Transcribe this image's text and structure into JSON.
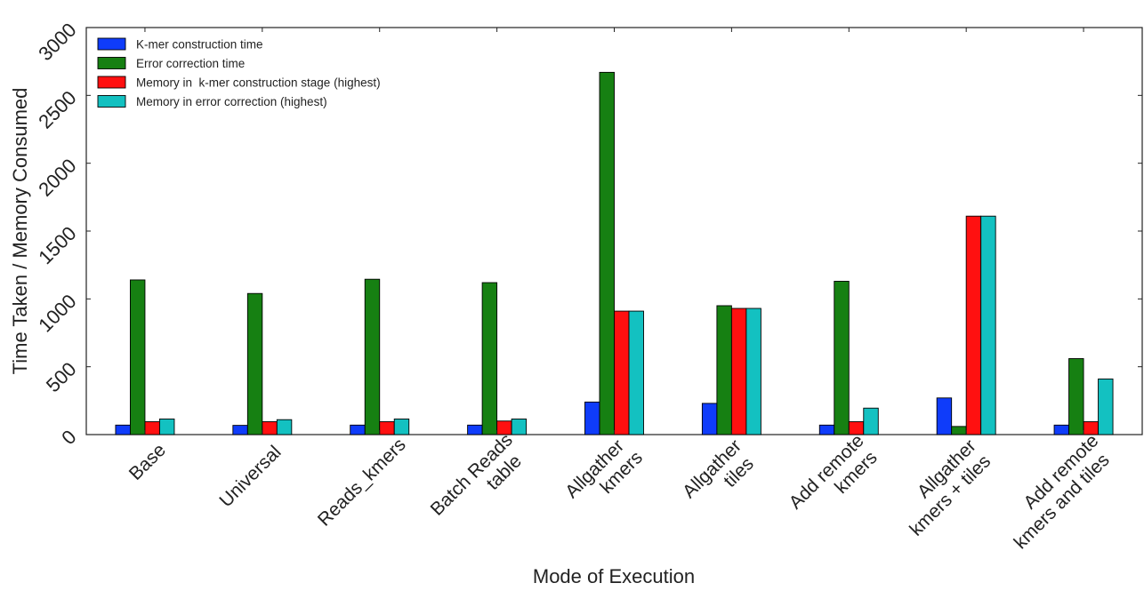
{
  "chart_data": {
    "type": "bar",
    "title": "",
    "xlabel": "Mode of Execution",
    "ylabel": "Time Taken / Memory Consumed",
    "ylim": [
      0,
      3000
    ],
    "yticks": [
      "0",
      "500",
      "1000",
      "1500",
      "2000",
      "2500",
      "3000"
    ],
    "ytick_values": [
      0,
      500,
      1000,
      1500,
      2000,
      2500,
      3000
    ],
    "categories": [
      [
        "Base"
      ],
      [
        "Universal"
      ],
      [
        "Reads_kmers"
      ],
      [
        "Batch Reads",
        "table"
      ],
      [
        "Allgather",
        "kmers"
      ],
      [
        "Allgather",
        "tiles"
      ],
      [
        "Add remote",
        "kmers"
      ],
      [
        "Allgather",
        "kmers + tiles"
      ],
      [
        "Add remote",
        "kmers and tiles"
      ]
    ],
    "series": [
      {
        "name": "K-mer construction time",
        "color": "#0f3cfa",
        "values": [
          70,
          68,
          70,
          70,
          240,
          230,
          70,
          270,
          70
        ]
      },
      {
        "name": "Error correction time",
        "color": "#168012",
        "values": [
          1140,
          1040,
          1145,
          1120,
          2670,
          950,
          1130,
          60,
          560
        ]
      },
      {
        "name": "Memory in  k-mer construction stage (highest)",
        "color": "#ff1010",
        "values": [
          95,
          95,
          95,
          100,
          910,
          930,
          95,
          1610,
          95
        ]
      },
      {
        "name": "Memory in error correction (highest)",
        "color": "#13c1c1",
        "values": [
          115,
          110,
          115,
          115,
          910,
          930,
          195,
          1610,
          410
        ]
      }
    ],
    "legend_position": "top-left",
    "grid": false
  }
}
